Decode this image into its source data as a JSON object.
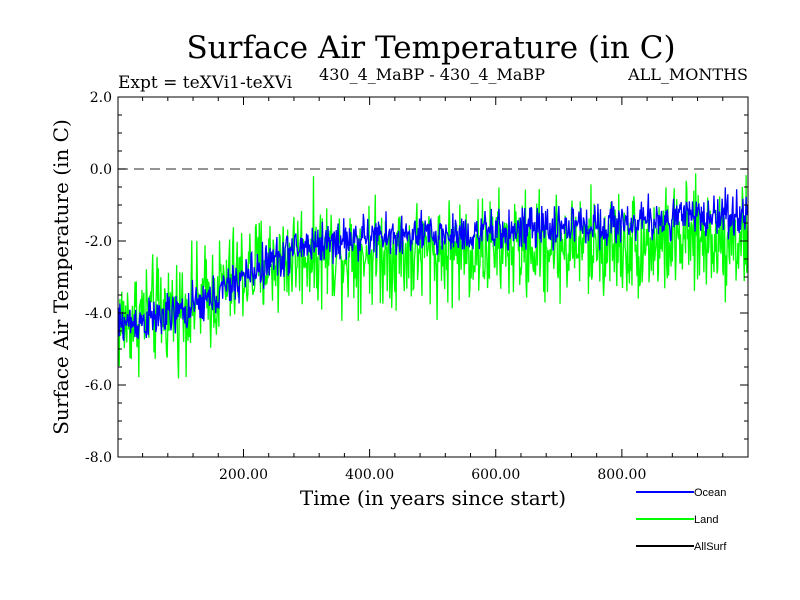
{
  "header": {
    "title": "Surface Air Temperature (in C)",
    "expt_label": "Expt = teXVi1-teXVi",
    "subtitle": "430_4_MaBP - 430_4_MaBP",
    "months_label": "ALL_MONTHS"
  },
  "chart_data": {
    "type": "line",
    "title": "Surface Air Temperature (in C)",
    "xlabel": "Time (in years since start)",
    "ylabel": "Surface Air Temperature (in C)",
    "xlim": [
      1,
      1000
    ],
    "ylim": [
      -8.0,
      2.0
    ],
    "x_ticks": [
      200,
      400,
      600,
      800
    ],
    "x_tick_labels": [
      "200.00",
      "400.00",
      "600.00",
      "800.00"
    ],
    "y_ticks": [
      -8.0,
      -6.0,
      -4.0,
      -2.0,
      0.0,
      2.0
    ],
    "y_tick_labels": [
      "-8.0",
      "-6.0",
      "-4.0",
      "-2.0",
      "0.0",
      "2.0"
    ],
    "reference_line": 0.0,
    "legend_position": "bottom-right",
    "series": [
      {
        "name": "Ocean",
        "color": "#0000ff",
        "approx_trend": [
          [
            1,
            -4.3
          ],
          [
            50,
            -4.2
          ],
          [
            100,
            -4.0
          ],
          [
            150,
            -3.6
          ],
          [
            200,
            -3.0
          ],
          [
            250,
            -2.5
          ],
          [
            300,
            -2.1
          ],
          [
            400,
            -1.9
          ],
          [
            500,
            -1.85
          ],
          [
            600,
            -1.75
          ],
          [
            700,
            -1.6
          ],
          [
            800,
            -1.5
          ],
          [
            900,
            -1.35
          ],
          [
            1000,
            -1.2
          ]
        ],
        "noise_amplitude": 0.55
      },
      {
        "name": "Land",
        "color": "#00ff00",
        "approx_trend": [
          [
            1,
            -4.3
          ],
          [
            50,
            -4.0
          ],
          [
            100,
            -3.9
          ],
          [
            150,
            -3.5
          ],
          [
            200,
            -2.9
          ],
          [
            250,
            -2.6
          ],
          [
            300,
            -2.3
          ],
          [
            400,
            -2.3
          ],
          [
            500,
            -2.3
          ],
          [
            600,
            -2.2
          ],
          [
            700,
            -2.15
          ],
          [
            800,
            -2.1
          ],
          [
            900,
            -2.0
          ],
          [
            1000,
            -1.9
          ]
        ],
        "noise_amplitude": 1.35
      },
      {
        "name": "AllSurf",
        "color": "#000000",
        "approx_trend": [],
        "noise_amplitude": 0
      }
    ]
  }
}
